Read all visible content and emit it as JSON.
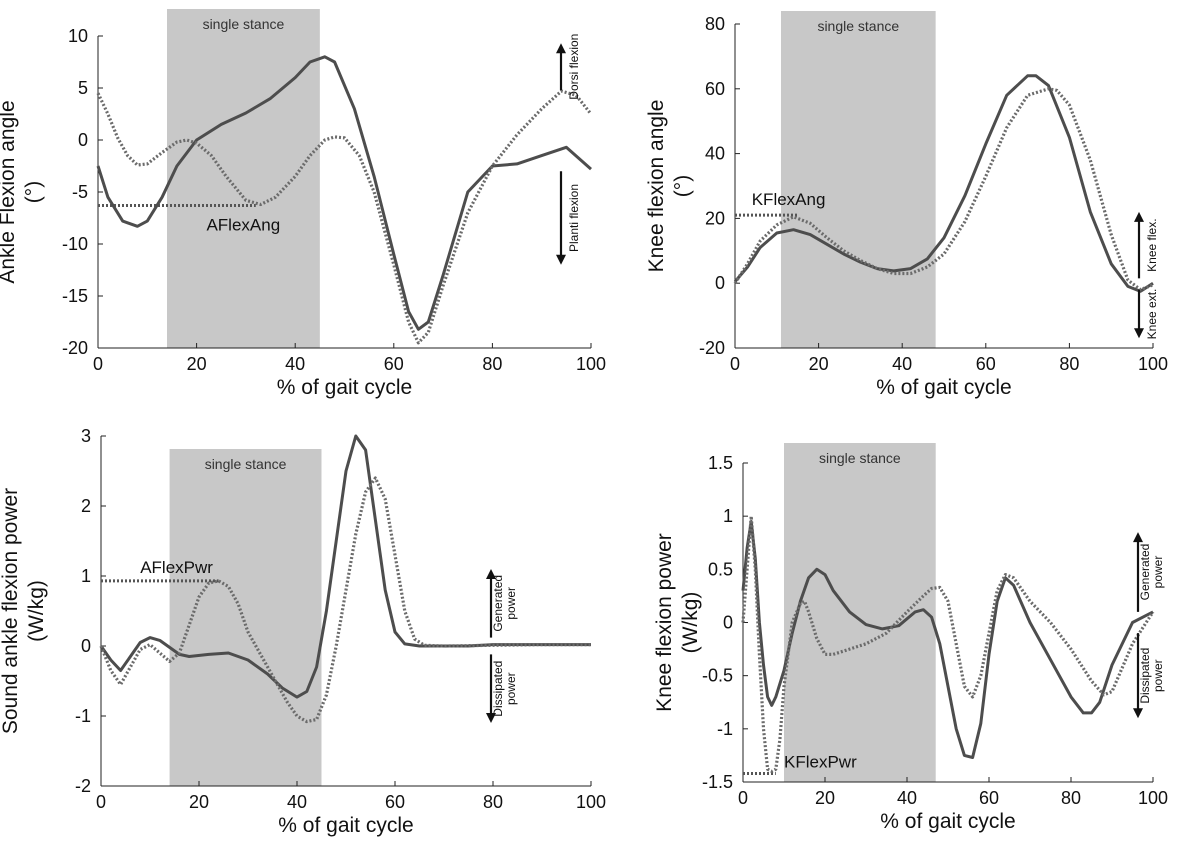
{
  "chart_data": [
    {
      "type": "line",
      "shaded_region": {
        "label": "single stance",
        "x": [
          14,
          45
        ]
      },
      "ylabel": "Ankle Flexion angle\n(°)",
      "xlabel": "% of gait cycle",
      "xlim": [
        0,
        100
      ],
      "ylim": [
        -20,
        10
      ],
      "xticks": [
        0,
        20,
        40,
        60,
        80,
        100
      ],
      "yticks": [
        -20,
        -15,
        -10,
        -5,
        0,
        5,
        10
      ],
      "marker_label": "AFlexAng",
      "marker_level": -6.3,
      "marker_x_end": 32,
      "indicators": {
        "up": "Dorsi flexion",
        "down": "Planti flexion"
      },
      "series": [
        {
          "style": "solid",
          "x": [
            0,
            2,
            5,
            8,
            10,
            13,
            16,
            20,
            25,
            30,
            35,
            40,
            43,
            46,
            48,
            52,
            56,
            60,
            63,
            65,
            67,
            70,
            75,
            80,
            85,
            90,
            95,
            100
          ],
          "y": [
            -2.5,
            -5.5,
            -7.8,
            -8.3,
            -7.8,
            -5.5,
            -2.5,
            0,
            1.5,
            2.6,
            4,
            6,
            7.5,
            8,
            7.5,
            3,
            -3.5,
            -11,
            -16.5,
            -18.2,
            -17.5,
            -13,
            -5,
            -2.5,
            -2.3,
            -1.5,
            -0.7,
            -2.8
          ]
        },
        {
          "style": "dotted",
          "x": [
            0,
            2,
            4,
            6,
            8,
            10,
            13,
            16,
            18,
            20,
            23,
            26,
            30,
            33,
            36,
            40,
            43,
            46,
            48,
            50,
            53,
            56,
            60,
            63,
            65,
            67,
            70,
            75,
            80,
            85,
            90,
            94,
            97,
            100
          ],
          "y": [
            4.5,
            2.5,
            0.2,
            -1.5,
            -2.4,
            -2.3,
            -1.2,
            -0.2,
            0,
            -0.3,
            -1.5,
            -3.5,
            -5.8,
            -6.2,
            -5.5,
            -3.5,
            -1.5,
            0,
            0.3,
            0.2,
            -1.5,
            -5,
            -12,
            -17.5,
            -19.5,
            -18.5,
            -14,
            -7,
            -2.5,
            0.5,
            3,
            4.7,
            4.3,
            2.5
          ]
        }
      ]
    },
    {
      "type": "line",
      "shaded_region": {
        "label": "single stance",
        "x": [
          11,
          48
        ]
      },
      "ylabel": "Knee flexion angle\n(°)",
      "xlabel": "% of gait cycle",
      "xlim": [
        0,
        100
      ],
      "ylim": [
        -20,
        80
      ],
      "xticks": [
        0,
        20,
        40,
        60,
        80,
        100
      ],
      "yticks": [
        -20,
        0,
        20,
        40,
        60,
        80
      ],
      "marker_label": "KFlexAng",
      "marker_level": 21,
      "marker_x_end": 15,
      "indicators": {
        "up": "Knee flex.",
        "down": "Knee ext."
      },
      "series": [
        {
          "style": "solid",
          "x": [
            0,
            3,
            6,
            10,
            14,
            18,
            22,
            26,
            30,
            34,
            38,
            42,
            46,
            50,
            55,
            60,
            65,
            70,
            72,
            75,
            80,
            85,
            90,
            94,
            97,
            100
          ],
          "y": [
            0.5,
            5,
            11,
            15.5,
            16.5,
            15,
            12,
            9,
            6.5,
            4.5,
            3.8,
            4.5,
            7.5,
            14,
            27,
            43,
            58,
            64,
            64,
            61,
            45,
            22,
            6,
            -1,
            -2.5,
            0
          ]
        },
        {
          "style": "dotted",
          "x": [
            0,
            3,
            6,
            10,
            14,
            18,
            22,
            26,
            30,
            34,
            38,
            42,
            46,
            50,
            55,
            60,
            65,
            70,
            75,
            77,
            80,
            85,
            90,
            94,
            97,
            100
          ],
          "y": [
            0,
            6,
            13,
            18,
            20.5,
            18.5,
            14,
            10,
            7,
            4.5,
            3,
            3,
            5,
            9,
            19,
            33,
            48,
            58,
            60,
            59.5,
            55,
            38,
            15,
            1,
            -2,
            -0.5
          ]
        }
      ]
    },
    {
      "type": "line",
      "shaded_region": {
        "label": "single stance",
        "x": [
          14,
          45
        ]
      },
      "ylabel": "Sound ankle flexion power\n(W/kg)",
      "xlabel": "% of gait cycle",
      "xlim": [
        0,
        100
      ],
      "ylim": [
        -2,
        3
      ],
      "xticks": [
        0,
        20,
        40,
        60,
        80,
        100
      ],
      "yticks": [
        -2,
        -1,
        0,
        1,
        2,
        3
      ],
      "marker_label": "AFlexPwr",
      "marker_level": 0.93,
      "marker_x_end": 24,
      "indicators": {
        "up": "Generated\npower",
        "down": "Dissipated\npower"
      },
      "series": [
        {
          "style": "solid",
          "x": [
            0,
            2,
            4,
            6,
            8,
            10,
            12,
            14,
            16,
            18,
            22,
            26,
            30,
            34,
            37,
            40,
            42,
            44,
            46,
            48,
            50,
            52,
            54,
            56,
            58,
            60,
            62,
            65,
            70,
            75,
            80,
            90,
            100
          ],
          "y": [
            0,
            -0.2,
            -0.35,
            -0.15,
            0.05,
            0.12,
            0.08,
            -0.02,
            -0.12,
            -0.15,
            -0.12,
            -0.1,
            -0.2,
            -0.4,
            -0.6,
            -0.73,
            -0.65,
            -0.3,
            0.5,
            1.5,
            2.5,
            3,
            2.8,
            1.8,
            0.8,
            0.2,
            0.03,
            0,
            0,
            0,
            0.02,
            0.02,
            0.02
          ]
        },
        {
          "style": "dotted",
          "x": [
            0,
            2,
            4,
            6,
            8,
            10,
            12,
            14,
            16,
            18,
            20,
            22,
            24,
            26,
            28,
            30,
            34,
            38,
            40,
            42,
            44,
            46,
            48,
            50,
            52,
            54,
            56,
            58,
            60,
            62,
            64,
            66,
            70,
            80,
            90,
            100
          ],
          "y": [
            0,
            -0.35,
            -0.55,
            -0.3,
            -0.05,
            0.02,
            -0.1,
            -0.22,
            -0.1,
            0.3,
            0.7,
            0.9,
            0.93,
            0.85,
            0.6,
            0.2,
            -0.3,
            -0.8,
            -1.0,
            -1.08,
            -1.05,
            -0.7,
            0,
            0.8,
            1.6,
            2.2,
            2.4,
            2.1,
            1.3,
            0.5,
            0.1,
            0.01,
            0,
            0.01,
            0.02,
            0.02
          ]
        }
      ]
    },
    {
      "type": "line",
      "shaded_region": {
        "label": "single stance",
        "x": [
          10,
          47
        ]
      },
      "ylabel": "Knee flexion power\n(W/kg)",
      "xlabel": "% of gait cycle",
      "xlim": [
        0,
        100
      ],
      "ylim": [
        -1.5,
        1.5
      ],
      "xticks": [
        0,
        20,
        40,
        60,
        80,
        100
      ],
      "yticks": [
        -1.5,
        -1,
        -0.5,
        0,
        0.5,
        1,
        1.5
      ],
      "xticklabel_format": "int",
      "ytick_labels": [
        "-1.5",
        "-1",
        "-0.5",
        "0",
        "0.5",
        "1",
        "1.5"
      ],
      "marker_label": "KFlexPwr",
      "marker_level": -1.42,
      "marker_x_end": 8,
      "indicators": {
        "up": "Generated\npower",
        "down": "Dissipated\npower"
      },
      "series": [
        {
          "style": "solid",
          "x": [
            0,
            1,
            2,
            3,
            4,
            5,
            6,
            7,
            8,
            10,
            12,
            14,
            16,
            18,
            20,
            22,
            26,
            30,
            34,
            38,
            42,
            44,
            46,
            48,
            50,
            52,
            54,
            56,
            58,
            60,
            62,
            64,
            66,
            70,
            75,
            80,
            83,
            85,
            87,
            90,
            95,
            100
          ],
          "y": [
            0.3,
            0.7,
            0.95,
            0.6,
            0,
            -0.4,
            -0.7,
            -0.78,
            -0.7,
            -0.45,
            -0.1,
            0.2,
            0.42,
            0.5,
            0.45,
            0.3,
            0.1,
            -0.02,
            -0.06,
            -0.03,
            0.1,
            0.12,
            0.05,
            -0.2,
            -0.6,
            -1.0,
            -1.25,
            -1.27,
            -0.95,
            -0.3,
            0.2,
            0.42,
            0.35,
            0,
            -0.35,
            -0.7,
            -0.85,
            -0.85,
            -0.75,
            -0.4,
            0,
            0.1
          ]
        },
        {
          "style": "dotted",
          "x": [
            0,
            1,
            2,
            3,
            4,
            5,
            6,
            7,
            8,
            9,
            10,
            12,
            14,
            15,
            16,
            18,
            20,
            22,
            26,
            30,
            35,
            40,
            44,
            46,
            48,
            50,
            52,
            54,
            56,
            58,
            60,
            62,
            64,
            66,
            70,
            75,
            80,
            85,
            88,
            90,
            95,
            100
          ],
          "y": [
            0,
            0.5,
            1.0,
            0.5,
            -0.3,
            -1.0,
            -1.38,
            -1.4,
            -1.38,
            -1.1,
            -0.6,
            0,
            0.18,
            0.2,
            0.1,
            -0.15,
            -0.3,
            -0.3,
            -0.25,
            -0.2,
            -0.1,
            0.1,
            0.25,
            0.32,
            0.33,
            0.2,
            -0.2,
            -0.6,
            -0.7,
            -0.5,
            -0.1,
            0.3,
            0.45,
            0.42,
            0.2,
            0,
            -0.25,
            -0.55,
            -0.68,
            -0.65,
            -0.2,
            0.1
          ]
        }
      ]
    }
  ]
}
